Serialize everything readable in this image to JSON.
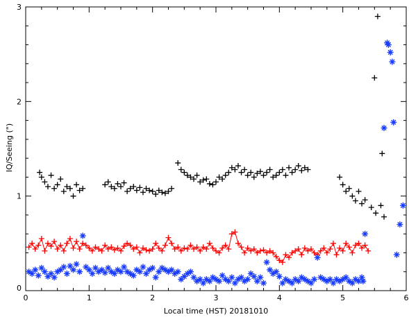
{
  "chart_data": {
    "type": "scatter",
    "title": "",
    "xlabel": "Local time (HST) 20181010",
    "ylabel": "IQ/Seeing (\")",
    "xlim": [
      0,
      6
    ],
    "ylim": [
      0,
      3
    ],
    "xticks": [
      "0",
      "1",
      "2",
      "3",
      "4",
      "5",
      "6"
    ],
    "yticks": [
      "0",
      "1",
      "2",
      "3"
    ],
    "grid": false,
    "legend": "none",
    "series": [
      {
        "marker": "plus",
        "line": false,
        "color": "#000000",
        "x": [
          0.22,
          0.25,
          0.3,
          0.35,
          0.4,
          0.45,
          0.5,
          0.55,
          0.6,
          0.65,
          0.7,
          0.75,
          0.8,
          0.85,
          0.9,
          1.25,
          1.3,
          1.35,
          1.4,
          1.45,
          1.5,
          1.55,
          1.6,
          1.65,
          1.7,
          1.75,
          1.8,
          1.85,
          1.9,
          1.95,
          2.0,
          2.05,
          2.1,
          2.15,
          2.2,
          2.25,
          2.3,
          2.4,
          2.45,
          2.5,
          2.55,
          2.6,
          2.65,
          2.7,
          2.75,
          2.8,
          2.85,
          2.9,
          2.95,
          3.0,
          3.05,
          3.1,
          3.15,
          3.2,
          3.25,
          3.3,
          3.35,
          3.4,
          3.45,
          3.5,
          3.55,
          3.6,
          3.65,
          3.7,
          3.75,
          3.8,
          3.85,
          3.9,
          3.95,
          4.0,
          4.05,
          4.1,
          4.15,
          4.2,
          4.25,
          4.3,
          4.35,
          4.4,
          4.45,
          4.95,
          5.0,
          5.05,
          5.1,
          5.15,
          5.2,
          5.25,
          5.3,
          5.35,
          5.45,
          5.5,
          5.52,
          5.55,
          5.6,
          5.62,
          5.65
        ],
        "y": [
          1.25,
          1.2,
          1.15,
          1.1,
          1.22,
          1.08,
          1.12,
          1.18,
          1.05,
          1.1,
          1.08,
          1.0,
          1.12,
          1.06,
          1.08,
          1.12,
          1.15,
          1.1,
          1.08,
          1.13,
          1.1,
          1.14,
          1.05,
          1.08,
          1.1,
          1.06,
          1.09,
          1.04,
          1.08,
          1.06,
          1.05,
          1.02,
          1.06,
          1.04,
          1.03,
          1.05,
          1.08,
          1.35,
          1.28,
          1.25,
          1.22,
          1.2,
          1.18,
          1.22,
          1.15,
          1.17,
          1.18,
          1.13,
          1.12,
          1.15,
          1.2,
          1.18,
          1.22,
          1.25,
          1.3,
          1.28,
          1.32,
          1.25,
          1.28,
          1.22,
          1.25,
          1.2,
          1.24,
          1.26,
          1.22,
          1.25,
          1.28,
          1.2,
          1.22,
          1.25,
          1.28,
          1.22,
          1.3,
          1.25,
          1.28,
          1.32,
          1.27,
          1.3,
          1.28,
          1.2,
          1.12,
          1.05,
          1.08,
          1.0,
          0.95,
          1.05,
          0.92,
          0.96,
          0.88,
          2.25,
          0.82,
          2.9,
          0.9,
          1.45,
          0.78
        ]
      },
      {
        "marker": "plus",
        "line": true,
        "color": "#ff0000",
        "x": [
          0.05,
          0.1,
          0.15,
          0.2,
          0.25,
          0.3,
          0.35,
          0.4,
          0.45,
          0.5,
          0.55,
          0.6,
          0.65,
          0.7,
          0.75,
          0.8,
          0.85,
          0.9,
          0.95,
          1.0,
          1.05,
          1.1,
          1.15,
          1.2,
          1.25,
          1.3,
          1.35,
          1.4,
          1.45,
          1.5,
          1.55,
          1.6,
          1.65,
          1.7,
          1.75,
          1.8,
          1.85,
          1.9,
          1.95,
          2.0,
          2.05,
          2.1,
          2.15,
          2.2,
          2.25,
          2.3,
          2.35,
          2.4,
          2.45,
          2.5,
          2.55,
          2.6,
          2.65,
          2.7,
          2.75,
          2.8,
          2.85,
          2.9,
          2.95,
          3.0,
          3.05,
          3.1,
          3.15,
          3.2,
          3.25,
          3.3,
          3.35,
          3.4,
          3.45,
          3.5,
          3.55,
          3.6,
          3.65,
          3.7,
          3.75,
          3.8,
          3.85,
          3.9,
          3.95,
          4.0,
          4.05,
          4.1,
          4.15,
          4.2,
          4.25,
          4.3,
          4.35,
          4.4,
          4.45,
          4.5,
          4.55,
          4.6,
          4.65,
          4.7,
          4.75,
          4.8,
          4.85,
          4.9,
          4.95,
          5.0,
          5.05,
          5.1,
          5.15,
          5.2,
          5.25,
          5.3,
          5.35,
          5.4
        ],
        "y": [
          0.46,
          0.5,
          0.44,
          0.48,
          0.55,
          0.42,
          0.5,
          0.47,
          0.52,
          0.44,
          0.48,
          0.42,
          0.5,
          0.55,
          0.45,
          0.52,
          0.44,
          0.5,
          0.48,
          0.45,
          0.42,
          0.46,
          0.44,
          0.42,
          0.48,
          0.44,
          0.46,
          0.43,
          0.45,
          0.42,
          0.47,
          0.5,
          0.48,
          0.44,
          0.46,
          0.4,
          0.45,
          0.43,
          0.42,
          0.44,
          0.5,
          0.45,
          0.42,
          0.48,
          0.56,
          0.5,
          0.44,
          0.46,
          0.42,
          0.45,
          0.44,
          0.48,
          0.44,
          0.46,
          0.42,
          0.46,
          0.44,
          0.5,
          0.45,
          0.42,
          0.4,
          0.45,
          0.48,
          0.44,
          0.6,
          0.62,
          0.5,
          0.46,
          0.4,
          0.45,
          0.42,
          0.44,
          0.4,
          0.42,
          0.43,
          0.4,
          0.42,
          0.4,
          0.36,
          0.32,
          0.3,
          0.38,
          0.35,
          0.4,
          0.42,
          0.44,
          0.38,
          0.45,
          0.42,
          0.44,
          0.4,
          0.38,
          0.42,
          0.45,
          0.4,
          0.44,
          0.5,
          0.38,
          0.45,
          0.42,
          0.5,
          0.46,
          0.4,
          0.48,
          0.5,
          0.45,
          0.48,
          0.42
        ]
      },
      {
        "marker": "asterisk",
        "line": false,
        "color": "#1a3cff",
        "x": [
          0.05,
          0.1,
          0.15,
          0.2,
          0.25,
          0.3,
          0.35,
          0.4,
          0.45,
          0.5,
          0.55,
          0.6,
          0.65,
          0.7,
          0.75,
          0.8,
          0.85,
          0.9,
          0.95,
          1.0,
          1.05,
          1.1,
          1.15,
          1.2,
          1.25,
          1.3,
          1.35,
          1.4,
          1.45,
          1.5,
          1.55,
          1.6,
          1.65,
          1.7,
          1.75,
          1.8,
          1.85,
          1.9,
          1.95,
          2.0,
          2.05,
          2.1,
          2.15,
          2.2,
          2.25,
          2.3,
          2.35,
          2.4,
          2.45,
          2.5,
          2.55,
          2.6,
          2.65,
          2.7,
          2.75,
          2.8,
          2.85,
          2.9,
          2.95,
          3.0,
          3.05,
          3.1,
          3.15,
          3.2,
          3.25,
          3.3,
          3.35,
          3.4,
          3.45,
          3.5,
          3.55,
          3.6,
          3.65,
          3.7,
          3.75,
          3.8,
          3.85,
          3.9,
          3.95,
          4.0,
          4.05,
          4.1,
          4.15,
          4.2,
          4.25,
          4.3,
          4.35,
          4.4,
          4.45,
          4.5,
          4.55,
          4.6,
          4.65,
          4.7,
          4.75,
          4.8,
          4.85,
          4.9,
          4.95,
          5.0,
          5.05,
          5.1,
          5.15,
          5.2,
          5.25,
          5.3,
          5.32,
          5.35,
          5.65,
          5.7,
          5.72,
          5.75,
          5.78,
          5.8,
          5.85,
          5.9,
          5.95
        ],
        "y": [
          0.2,
          0.18,
          0.22,
          0.16,
          0.24,
          0.2,
          0.15,
          0.18,
          0.14,
          0.2,
          0.22,
          0.25,
          0.18,
          0.26,
          0.22,
          0.28,
          0.2,
          0.58,
          0.25,
          0.22,
          0.18,
          0.24,
          0.2,
          0.22,
          0.19,
          0.24,
          0.2,
          0.18,
          0.22,
          0.2,
          0.25,
          0.2,
          0.18,
          0.16,
          0.22,
          0.2,
          0.25,
          0.18,
          0.22,
          0.24,
          0.14,
          0.2,
          0.24,
          0.22,
          0.2,
          0.22,
          0.18,
          0.2,
          0.12,
          0.15,
          0.18,
          0.2,
          0.14,
          0.1,
          0.12,
          0.08,
          0.12,
          0.1,
          0.14,
          0.12,
          0.1,
          0.16,
          0.12,
          0.1,
          0.14,
          0.08,
          0.12,
          0.14,
          0.1,
          0.12,
          0.18,
          0.15,
          0.1,
          0.14,
          0.08,
          0.3,
          0.22,
          0.18,
          0.2,
          0.15,
          0.08,
          0.12,
          0.1,
          0.08,
          0.12,
          0.1,
          0.14,
          0.12,
          0.1,
          0.08,
          0.12,
          0.35,
          0.14,
          0.12,
          0.1,
          0.12,
          0.08,
          0.12,
          0.1,
          0.12,
          0.14,
          0.1,
          0.08,
          0.12,
          0.1,
          0.14,
          0.1,
          0.6,
          1.72,
          2.62,
          2.6,
          2.52,
          2.42,
          1.78,
          0.38,
          0.7,
          0.9
        ]
      }
    ]
  }
}
